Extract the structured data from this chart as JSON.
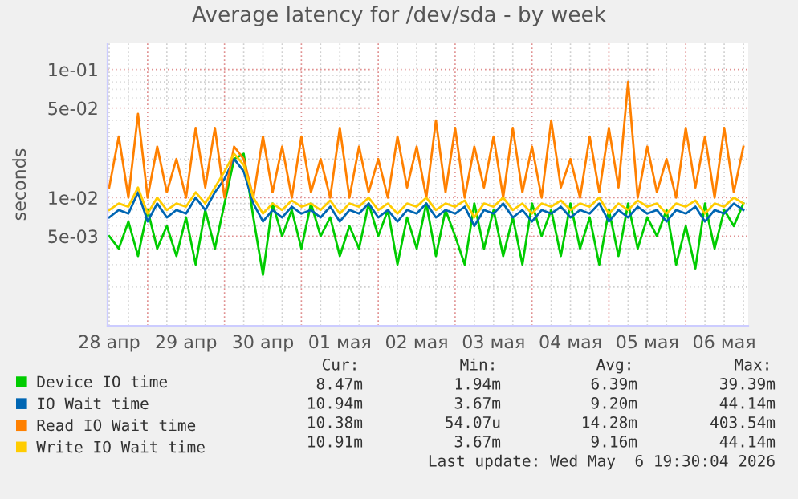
{
  "chart_data": {
    "type": "line",
    "title": "Average latency for /dev/sda - by week",
    "ylabel": "seconds",
    "x": [
      "2026-04-28T12:00",
      "2026-04-28T15:00",
      "2026-04-28T18:00",
      "2026-04-28T21:00",
      "2026-04-29T00:00",
      "2026-04-29T03:00",
      "2026-04-29T06:00",
      "2026-04-29T09:00",
      "2026-04-29T12:00",
      "2026-04-29T15:00",
      "2026-04-29T18:00",
      "2026-04-29T21:00",
      "2026-04-30T00:00",
      "2026-04-30T03:00",
      "2026-04-30T06:00",
      "2026-04-30T09:00",
      "2026-04-30T12:00",
      "2026-04-30T15:00",
      "2026-04-30T18:00",
      "2026-04-30T21:00",
      "2026-05-01T00:00",
      "2026-05-01T03:00",
      "2026-05-01T06:00",
      "2026-05-01T09:00",
      "2026-05-01T12:00",
      "2026-05-01T15:00",
      "2026-05-01T18:00",
      "2026-05-01T21:00",
      "2026-05-02T00:00",
      "2026-05-02T03:00",
      "2026-05-02T06:00",
      "2026-05-02T09:00",
      "2026-05-02T12:00",
      "2026-05-02T15:00",
      "2026-05-02T18:00",
      "2026-05-02T21:00",
      "2026-05-03T00:00",
      "2026-05-03T03:00",
      "2026-05-03T06:00",
      "2026-05-03T09:00",
      "2026-05-03T12:00",
      "2026-05-03T15:00",
      "2026-05-03T18:00",
      "2026-05-03T21:00",
      "2026-05-04T00:00",
      "2026-05-04T03:00",
      "2026-05-04T06:00",
      "2026-05-04T09:00",
      "2026-05-04T12:00",
      "2026-05-04T15:00",
      "2026-05-04T18:00",
      "2026-05-04T21:00",
      "2026-05-05T00:00",
      "2026-05-05T03:00",
      "2026-05-05T06:00",
      "2026-05-05T09:00",
      "2026-05-05T12:00",
      "2026-05-05T15:00",
      "2026-05-05T18:00",
      "2026-05-05T21:00",
      "2026-05-06T00:00",
      "2026-05-06T03:00",
      "2026-05-06T06:00",
      "2026-05-06T09:00",
      "2026-05-06T12:00",
      "2026-05-06T15:00",
      "2026-05-06T18:00"
    ],
    "series": [
      {
        "name": "Device IO time",
        "color": "#00cc00",
        "values": [
          0.005,
          0.004,
          0.0065,
          0.0035,
          0.008,
          0.004,
          0.006,
          0.0035,
          0.007,
          0.003,
          0.008,
          0.004,
          0.009,
          0.02,
          0.022,
          0.007,
          0.0025,
          0.009,
          0.005,
          0.008,
          0.004,
          0.009,
          0.005,
          0.007,
          0.0035,
          0.006,
          0.004,
          0.009,
          0.005,
          0.008,
          0.003,
          0.007,
          0.004,
          0.009,
          0.0035,
          0.008,
          0.005,
          0.003,
          0.009,
          0.004,
          0.008,
          0.0035,
          0.007,
          0.003,
          0.009,
          0.005,
          0.008,
          0.0035,
          0.009,
          0.004,
          0.007,
          0.003,
          0.008,
          0.0035,
          0.009,
          0.004,
          0.007,
          0.005,
          0.008,
          0.003,
          0.006,
          0.0028,
          0.009,
          0.004,
          0.008,
          0.006,
          0.009
        ]
      },
      {
        "name": "IO Wait time",
        "color": "#0066b3",
        "values": [
          0.007,
          0.008,
          0.0075,
          0.011,
          0.0065,
          0.009,
          0.007,
          0.008,
          0.0075,
          0.01,
          0.008,
          0.011,
          0.014,
          0.02,
          0.016,
          0.009,
          0.0065,
          0.008,
          0.007,
          0.0085,
          0.0075,
          0.008,
          0.007,
          0.0085,
          0.0065,
          0.008,
          0.0075,
          0.009,
          0.007,
          0.008,
          0.0065,
          0.008,
          0.0075,
          0.009,
          0.007,
          0.008,
          0.0075,
          0.0085,
          0.006,
          0.008,
          0.0075,
          0.009,
          0.007,
          0.008,
          0.0065,
          0.008,
          0.0075,
          0.0085,
          0.007,
          0.008,
          0.0075,
          0.009,
          0.0065,
          0.008,
          0.007,
          0.0085,
          0.0075,
          0.008,
          0.0065,
          0.008,
          0.0075,
          0.0085,
          0.0065,
          0.008,
          0.0075,
          0.009,
          0.008
        ]
      },
      {
        "name": "Read IO Wait time",
        "color": "#ff8000",
        "values": [
          0.012,
          0.03,
          0.01,
          0.045,
          0.01,
          0.025,
          0.011,
          0.02,
          0.01,
          0.035,
          0.012,
          0.035,
          0.01,
          0.025,
          0.02,
          0.01,
          0.03,
          0.011,
          0.025,
          0.01,
          0.03,
          0.011,
          0.02,
          0.01,
          0.035,
          0.01,
          0.025,
          0.011,
          0.02,
          0.01,
          0.03,
          0.012,
          0.025,
          0.01,
          0.04,
          0.011,
          0.035,
          0.01,
          0.025,
          0.012,
          0.03,
          0.01,
          0.035,
          0.011,
          0.025,
          0.01,
          0.04,
          0.012,
          0.02,
          0.01,
          0.03,
          0.011,
          0.035,
          0.012,
          0.08,
          0.01,
          0.025,
          0.011,
          0.02,
          0.01,
          0.035,
          0.012,
          0.03,
          0.01,
          0.035,
          0.011,
          0.025
        ]
      },
      {
        "name": "Write IO Wait time",
        "color": "#ffcc00",
        "values": [
          0.008,
          0.009,
          0.0085,
          0.012,
          0.0075,
          0.01,
          0.008,
          0.009,
          0.0085,
          0.011,
          0.009,
          0.012,
          0.016,
          0.022,
          0.018,
          0.01,
          0.0075,
          0.009,
          0.008,
          0.0095,
          0.0085,
          0.009,
          0.008,
          0.0095,
          0.0075,
          0.009,
          0.0085,
          0.01,
          0.008,
          0.009,
          0.0075,
          0.009,
          0.0085,
          0.01,
          0.008,
          0.009,
          0.0085,
          0.0095,
          0.007,
          0.009,
          0.0085,
          0.01,
          0.008,
          0.009,
          0.0075,
          0.009,
          0.0085,
          0.0095,
          0.008,
          0.009,
          0.0085,
          0.01,
          0.0075,
          0.009,
          0.008,
          0.0095,
          0.0085,
          0.009,
          0.0075,
          0.009,
          0.0085,
          0.0095,
          0.0075,
          0.009,
          0.0085,
          0.01,
          0.009
        ]
      }
    ],
    "log": "y",
    "ylim": [
      0.001,
      0.16
    ],
    "yticks": [
      {
        "value": 0.002,
        "label": null
      },
      {
        "value": 0.003,
        "label": null
      },
      {
        "value": 0.004,
        "label": null
      },
      {
        "value": 0.005,
        "label": "5e-03"
      },
      {
        "value": 0.006,
        "label": null
      },
      {
        "value": 0.007,
        "label": null
      },
      {
        "value": 0.008,
        "label": null
      },
      {
        "value": 0.009,
        "label": null
      },
      {
        "value": 0.01,
        "label": "1e-02"
      },
      {
        "value": 0.02,
        "label": null
      },
      {
        "value": 0.03,
        "label": null
      },
      {
        "value": 0.04,
        "label": null
      },
      {
        "value": 0.05,
        "label": "5e-02"
      },
      {
        "value": 0.06,
        "label": null
      },
      {
        "value": 0.07,
        "label": null
      },
      {
        "value": 0.08,
        "label": null
      },
      {
        "value": 0.09,
        "label": null
      },
      {
        "value": 0.1,
        "label": "1e-01"
      }
    ],
    "xlim": [
      "2026-04-28T11:30",
      "2026-05-06T19:30"
    ],
    "xticks": [
      {
        "value": "2026-04-28T12:00",
        "label": "28 апр"
      },
      {
        "value": "2026-04-28T18:00",
        "label": null
      },
      {
        "value": "2026-04-29T00:00",
        "label": null
      },
      {
        "value": "2026-04-29T06:00",
        "label": null
      },
      {
        "value": "2026-04-29T12:00",
        "label": "29 апр"
      },
      {
        "value": "2026-04-29T18:00",
        "label": null
      },
      {
        "value": "2026-04-30T00:00",
        "label": null
      },
      {
        "value": "2026-04-30T06:00",
        "label": null
      },
      {
        "value": "2026-04-30T12:00",
        "label": "30 апр"
      },
      {
        "value": "2026-04-30T18:00",
        "label": null
      },
      {
        "value": "2026-05-01T00:00",
        "label": null
      },
      {
        "value": "2026-05-01T06:00",
        "label": null
      },
      {
        "value": "2026-05-01T12:00",
        "label": "01 мая"
      },
      {
        "value": "2026-05-01T18:00",
        "label": null
      },
      {
        "value": "2026-05-02T00:00",
        "label": null
      },
      {
        "value": "2026-05-02T06:00",
        "label": null
      },
      {
        "value": "2026-05-02T12:00",
        "label": "02 мая"
      },
      {
        "value": "2026-05-02T18:00",
        "label": null
      },
      {
        "value": "2026-05-03T00:00",
        "label": null
      },
      {
        "value": "2026-05-03T06:00",
        "label": null
      },
      {
        "value": "2026-05-03T12:00",
        "label": "03 мая"
      },
      {
        "value": "2026-05-03T18:00",
        "label": null
      },
      {
        "value": "2026-05-04T00:00",
        "label": null
      },
      {
        "value": "2026-05-04T06:00",
        "label": null
      },
      {
        "value": "2026-05-04T12:00",
        "label": "04 мая"
      },
      {
        "value": "2026-05-04T18:00",
        "label": null
      },
      {
        "value": "2026-05-05T00:00",
        "label": null
      },
      {
        "value": "2026-05-05T06:00",
        "label": null
      },
      {
        "value": "2026-05-05T12:00",
        "label": "05 мая"
      },
      {
        "value": "2026-05-05T18:00",
        "label": null
      },
      {
        "value": "2026-05-06T00:00",
        "label": null
      },
      {
        "value": "2026-05-06T06:00",
        "label": null
      },
      {
        "value": "2026-05-06T12:00",
        "label": "06 мая"
      },
      {
        "value": "2026-05-06T18:00",
        "label": null
      }
    ],
    "grid": true,
    "legend": "bottom",
    "annotations": [
      "Cur:",
      "Min:",
      "Avg:",
      "Max:",
      "8.47m",
      "1.94m",
      "6.39m",
      "39.39m",
      "10.94m",
      "3.67m",
      "9.20m",
      "44.14m",
      "10.38m",
      "54.07u",
      "14.28m",
      "403.54m",
      "10.91m",
      "3.67m",
      "9.16m",
      "44.14m",
      "Last update: Wed May  6 19:30:04 2026"
    ]
  }
}
